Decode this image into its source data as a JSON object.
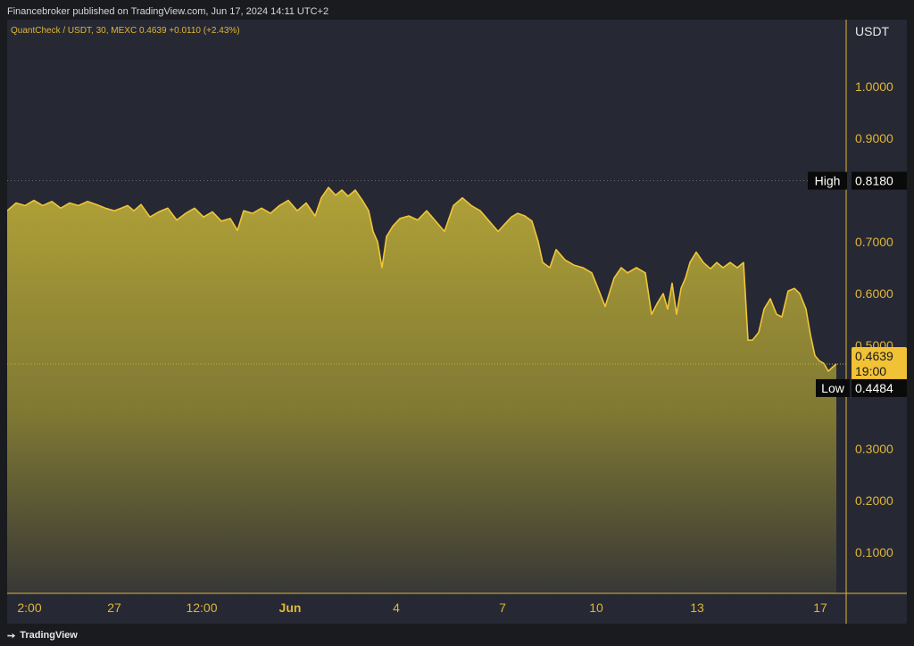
{
  "header": {
    "published": "Financebroker published on TradingView.com, Jun 17, 2024 14:11 UTC+2",
    "symbol_line": "QuantCheck / USDT, 30, MEXC  0.4639  +0.0110 (+2.43%)"
  },
  "footer": {
    "brand": "TradingView",
    "logo_icon": "tradingview-logo-icon"
  },
  "colors": {
    "background": "#262833",
    "line": "#f0c53a",
    "fill_top": "#b8a838",
    "fill_bottom": "#3a3a36",
    "axis": "#e0b53a",
    "price_badge": "#f2c236"
  },
  "chart_data": {
    "type": "area",
    "title": "",
    "xlabel": "",
    "ylabel": "USDT",
    "currency_label": "USDT",
    "ylim": [
      0.03,
      1.1
    ],
    "y_ticks": [
      1.0,
      0.9,
      0.7,
      0.6,
      0.5,
      0.3,
      0.2,
      0.1
    ],
    "y_tick_labels": [
      "1.0000",
      "0.9000",
      "0.7000",
      "0.6000",
      "0.5000",
      "0.3000",
      "0.2000",
      "0.1000"
    ],
    "x_range": [
      0,
      929
    ],
    "x_ticks": [
      {
        "x": 25,
        "label": "2:00",
        "bold": false
      },
      {
        "x": 120,
        "label": "27",
        "bold": false
      },
      {
        "x": 218,
        "label": "12:00",
        "bold": false
      },
      {
        "x": 317,
        "label": "Jun",
        "bold": true
      },
      {
        "x": 436,
        "label": "4",
        "bold": false
      },
      {
        "x": 555,
        "label": "7",
        "bold": false
      },
      {
        "x": 660,
        "label": "10",
        "bold": false
      },
      {
        "x": 773,
        "label": "13",
        "bold": false
      },
      {
        "x": 911,
        "label": "17",
        "bold": false
      }
    ],
    "high": {
      "label": "High",
      "value": 0.818,
      "text": "0.8180"
    },
    "low": {
      "label": "Low",
      "value": 0.4484,
      "text": "0.4484"
    },
    "last": {
      "value": 0.4639,
      "text": "0.4639",
      "time": "19:00"
    },
    "grid": false,
    "series": [
      {
        "x": [
          0,
          10,
          20,
          30,
          40,
          50,
          60,
          70,
          80,
          90,
          100,
          110,
          120,
          128,
          135,
          142,
          150,
          160,
          170,
          180,
          190,
          200,
          210,
          220,
          230,
          240,
          250,
          258,
          265,
          275,
          285,
          295,
          305,
          315,
          325,
          335,
          345,
          352,
          360,
          368,
          375,
          382,
          390,
          398,
          405,
          410,
          415,
          420,
          425,
          432,
          440,
          450,
          460,
          470,
          480,
          490,
          500,
          510,
          520,
          530,
          540,
          550,
          558,
          565,
          572,
          580,
          588,
          595,
          600,
          608,
          615,
          625,
          635,
          645,
          655,
          662,
          670,
          680,
          688,
          695,
          705,
          715,
          722,
          728,
          735,
          740,
          745,
          750,
          755,
          760,
          765,
          772,
          780,
          788,
          795,
          802,
          810,
          818,
          825,
          830,
          835,
          842,
          848,
          855,
          862,
          868,
          875,
          882,
          888,
          895,
          900,
          905,
          910,
          915,
          920,
          925,
          929
        ],
        "values": [
          0.76,
          0.775,
          0.77,
          0.78,
          0.77,
          0.778,
          0.765,
          0.775,
          0.77,
          0.778,
          0.772,
          0.765,
          0.76,
          0.765,
          0.77,
          0.76,
          0.772,
          0.748,
          0.758,
          0.765,
          0.742,
          0.755,
          0.765,
          0.748,
          0.758,
          0.74,
          0.745,
          0.722,
          0.76,
          0.755,
          0.765,
          0.755,
          0.77,
          0.78,
          0.76,
          0.775,
          0.75,
          0.785,
          0.805,
          0.79,
          0.8,
          0.788,
          0.8,
          0.78,
          0.76,
          0.72,
          0.7,
          0.65,
          0.71,
          0.73,
          0.745,
          0.75,
          0.742,
          0.76,
          0.74,
          0.72,
          0.77,
          0.785,
          0.77,
          0.76,
          0.74,
          0.72,
          0.735,
          0.748,
          0.755,
          0.75,
          0.74,
          0.7,
          0.66,
          0.65,
          0.685,
          0.665,
          0.655,
          0.65,
          0.64,
          0.61,
          0.575,
          0.63,
          0.65,
          0.64,
          0.65,
          0.64,
          0.56,
          0.58,
          0.6,
          0.57,
          0.62,
          0.56,
          0.61,
          0.63,
          0.66,
          0.68,
          0.66,
          0.648,
          0.66,
          0.65,
          0.66,
          0.65,
          0.66,
          0.51,
          0.51,
          0.525,
          0.57,
          0.59,
          0.56,
          0.555,
          0.605,
          0.61,
          0.6,
          0.57,
          0.52,
          0.48,
          0.47,
          0.465,
          0.45,
          0.458,
          0.464
        ]
      }
    ]
  }
}
